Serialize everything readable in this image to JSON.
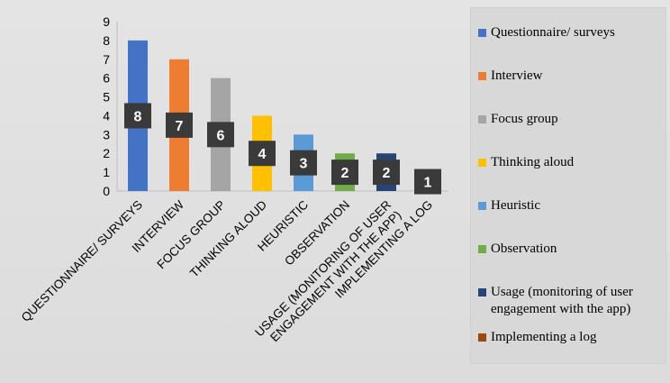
{
  "chart_data": {
    "type": "bar",
    "categories": [
      "QUESTIONNAIRE/ SURVEYS",
      "INTERVIEW",
      "FOCUS GROUP",
      "THINKING ALOUD",
      "HEURISTIC",
      "OBSERVATION",
      "USAGE (MONITORING OF USER ENGAGEMENT WITH THE APP)",
      "IMPLEMENTING A LOG"
    ],
    "category_label_lines": [
      [
        "QUESTIONNAIRE/ SURVEYS"
      ],
      [
        "INTERVIEW"
      ],
      [
        "FOCUS GROUP"
      ],
      [
        "THINKING ALOUD"
      ],
      [
        "HEURISTIC"
      ],
      [
        "OBSERVATION"
      ],
      [
        "USAGE (MONITORING OF USER",
        "ENGAGEMENT WITH THE APP)"
      ],
      [
        "IMPLEMENTING A LOG"
      ]
    ],
    "values": [
      8,
      7,
      6,
      4,
      3,
      2,
      2,
      1
    ],
    "data_labels": [
      "8",
      "7",
      "6",
      "4",
      "3",
      "2",
      "2",
      "1"
    ],
    "legend": [
      "Questionnaire/ surveys",
      "Interview",
      "Focus group",
      "Thinking aloud",
      "Heuristic",
      "Observation",
      "Usage (monitoring of user engagement with the app)",
      "Implementing a log"
    ],
    "colors": [
      "#4472c4",
      "#ed7d31",
      "#a5a5a5",
      "#ffc000",
      "#5b9bd5",
      "#70ad47",
      "#264478",
      "#9e480e"
    ],
    "yticks": [
      "0",
      "1",
      "2",
      "3",
      "4",
      "5",
      "6",
      "7",
      "8",
      "9"
    ],
    "ylim": [
      0,
      9
    ],
    "grid": false,
    "legend_position": "right",
    "title": "",
    "xlabel": "",
    "ylabel": ""
  }
}
